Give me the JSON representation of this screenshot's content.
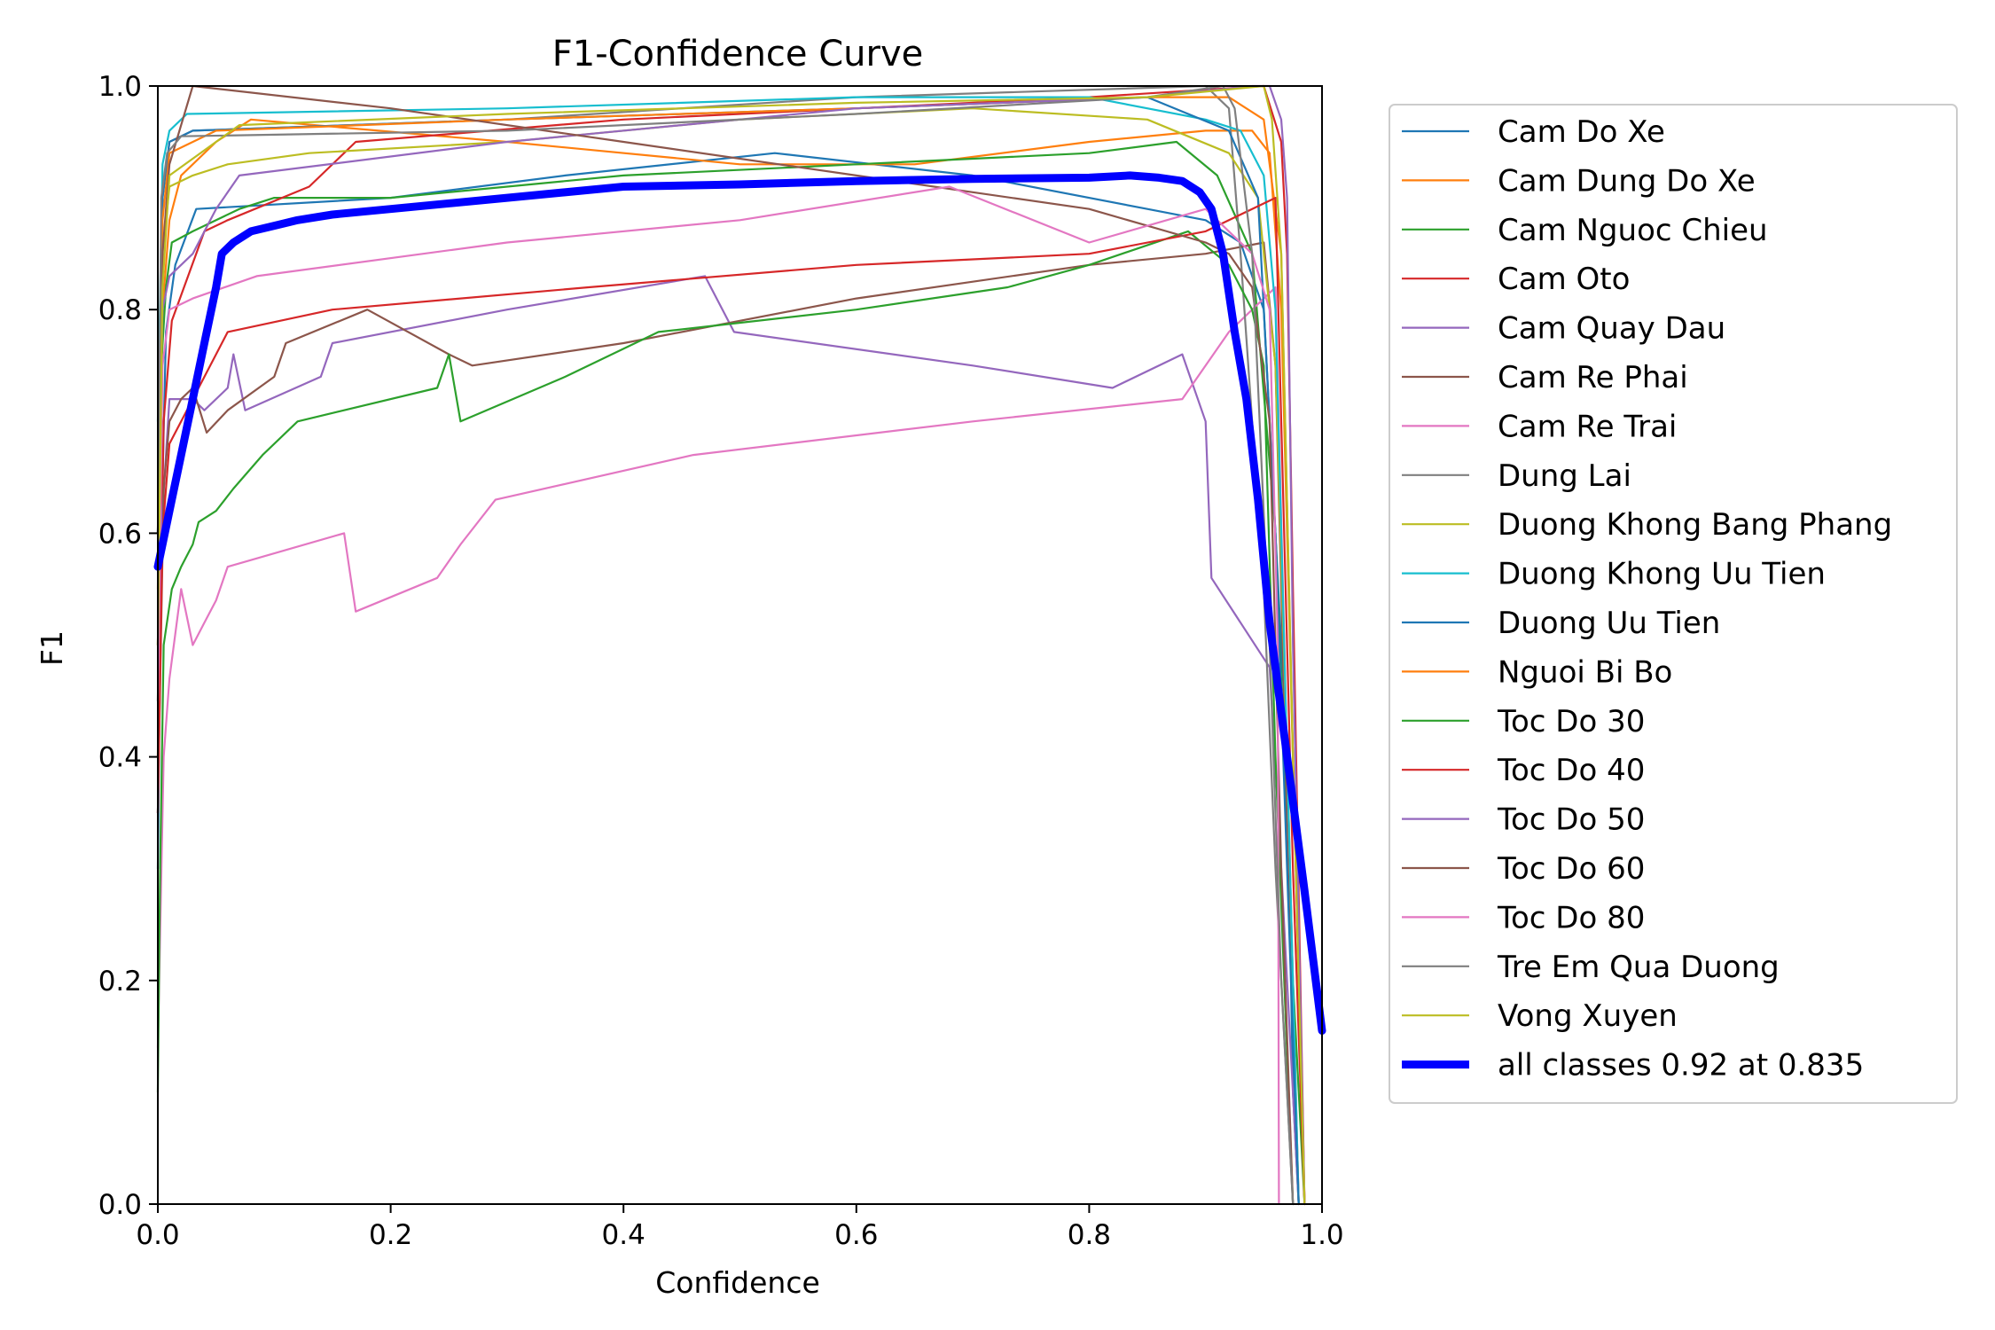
{
  "chart_data": {
    "type": "line",
    "title": "F1-Confidence Curve",
    "xlabel": "Confidence",
    "ylabel": "F1",
    "xlim": [
      0.0,
      1.0
    ],
    "ylim": [
      0.0,
      1.0
    ],
    "xticks": [
      "0.0",
      "0.2",
      "0.4",
      "0.6",
      "0.8",
      "1.0"
    ],
    "yticks": [
      "0.0",
      "0.2",
      "0.4",
      "0.6",
      "0.8",
      "1.0"
    ],
    "grid": false,
    "legend_position": "outside-right",
    "series": [
      {
        "name": "Cam Do Xe",
        "color": "#1f77b4",
        "width": "thin",
        "x": [
          0.0,
          0.003,
          0.007,
          0.015,
          0.033,
          0.2,
          0.35,
          0.53,
          0.7,
          0.85,
          0.9,
          0.93,
          0.95,
          0.97,
          0.975,
          0.98
        ],
        "y": [
          0.3,
          0.6,
          0.78,
          0.84,
          0.89,
          0.9,
          0.92,
          0.94,
          0.92,
          0.89,
          0.88,
          0.86,
          0.8,
          0.4,
          0.1,
          0.0
        ]
      },
      {
        "name": "Cam Dung Do Xe",
        "color": "#ff7f0e",
        "width": "thin",
        "x": [
          0.0,
          0.004,
          0.01,
          0.02,
          0.05,
          0.08,
          0.3,
          0.5,
          0.65,
          0.8,
          0.9,
          0.94,
          0.955,
          0.965,
          0.975,
          0.985
        ],
        "y": [
          0.4,
          0.8,
          0.88,
          0.92,
          0.95,
          0.97,
          0.95,
          0.93,
          0.93,
          0.95,
          0.96,
          0.96,
          0.94,
          0.8,
          0.4,
          0.0
        ]
      },
      {
        "name": "Cam Nguoc Chieu",
        "color": "#2ca02c",
        "width": "thin",
        "x": [
          0.0,
          0.003,
          0.007,
          0.012,
          0.03,
          0.07,
          0.1,
          0.2,
          0.4,
          0.6,
          0.8,
          0.875,
          0.91,
          0.94,
          0.96,
          0.975,
          0.985
        ],
        "y": [
          0.45,
          0.75,
          0.82,
          0.86,
          0.87,
          0.89,
          0.9,
          0.9,
          0.92,
          0.93,
          0.94,
          0.95,
          0.92,
          0.85,
          0.6,
          0.2,
          0.0
        ]
      },
      {
        "name": "Cam Oto",
        "color": "#d62728",
        "width": "thin",
        "x": [
          0.0,
          0.005,
          0.012,
          0.04,
          0.06,
          0.13,
          0.17,
          0.4,
          0.6,
          0.8,
          0.95,
          0.965,
          0.97,
          0.975,
          0.985
        ],
        "y": [
          0.4,
          0.7,
          0.79,
          0.87,
          0.88,
          0.91,
          0.95,
          0.97,
          0.98,
          0.99,
          1.0,
          0.95,
          0.85,
          0.55,
          0.0
        ]
      },
      {
        "name": "Cam Quay Dau",
        "color": "#9467bd",
        "width": "thin",
        "x": [
          0.0,
          0.004,
          0.01,
          0.03,
          0.04,
          0.06,
          0.065,
          0.075,
          0.14,
          0.15,
          0.3,
          0.47,
          0.495,
          0.7,
          0.82,
          0.88,
          0.9,
          0.905,
          0.955,
          0.965,
          0.98
        ],
        "y": [
          0.35,
          0.62,
          0.72,
          0.72,
          0.71,
          0.73,
          0.76,
          0.71,
          0.74,
          0.77,
          0.8,
          0.83,
          0.78,
          0.75,
          0.73,
          0.76,
          0.7,
          0.56,
          0.48,
          0.3,
          0.0
        ]
      },
      {
        "name": "Cam Re Phai",
        "color": "#8c564b",
        "width": "thin",
        "x": [
          0.0,
          0.005,
          0.01,
          0.02,
          0.03,
          0.042,
          0.06,
          0.1,
          0.11,
          0.18,
          0.25,
          0.27,
          0.4,
          0.6,
          0.8,
          0.9,
          0.95,
          0.96,
          0.97,
          0.98
        ],
        "y": [
          0.35,
          0.64,
          0.7,
          0.72,
          0.73,
          0.69,
          0.71,
          0.74,
          0.77,
          0.8,
          0.76,
          0.75,
          0.77,
          0.81,
          0.84,
          0.85,
          0.86,
          0.75,
          0.35,
          0.0
        ]
      },
      {
        "name": "Cam Re Trai",
        "color": "#e377c2",
        "width": "thin",
        "x": [
          0.0,
          0.005,
          0.01,
          0.02,
          0.03,
          0.04,
          0.05,
          0.06,
          0.16,
          0.17,
          0.24,
          0.26,
          0.29,
          0.46,
          0.7,
          0.88,
          0.9,
          0.92,
          0.94,
          0.96,
          0.97,
          0.98
        ],
        "y": [
          0.14,
          0.4,
          0.47,
          0.55,
          0.5,
          0.52,
          0.54,
          0.57,
          0.6,
          0.53,
          0.56,
          0.59,
          0.63,
          0.67,
          0.7,
          0.72,
          0.75,
          0.78,
          0.8,
          0.82,
          0.4,
          0.0
        ]
      },
      {
        "name": "Dung Lai",
        "color": "#7f7f7f",
        "width": "thin",
        "x": [
          0.0,
          0.004,
          0.01,
          0.03,
          0.3,
          0.6,
          0.9,
          0.92,
          0.93,
          0.95,
          0.96,
          0.975
        ],
        "y": [
          0.6,
          0.9,
          0.95,
          0.96,
          0.97,
          0.99,
          1.0,
          0.98,
          0.85,
          0.55,
          0.3,
          0.0
        ]
      },
      {
        "name": "Duong Khong Bang Phang",
        "color": "#bcbd22",
        "width": "thin",
        "x": [
          0.0,
          0.004,
          0.01,
          0.03,
          0.06,
          0.13,
          0.3,
          0.5,
          0.7,
          0.85,
          0.92,
          0.945,
          0.96,
          0.97,
          0.98
        ],
        "y": [
          0.5,
          0.85,
          0.91,
          0.92,
          0.93,
          0.94,
          0.95,
          0.97,
          0.98,
          0.97,
          0.94,
          0.9,
          0.75,
          0.4,
          0.0
        ]
      },
      {
        "name": "Duong Khong Uu Tien",
        "color": "#17becf",
        "width": "thin",
        "x": [
          0.0,
          0.004,
          0.01,
          0.025,
          0.3,
          0.6,
          0.8,
          0.9,
          0.93,
          0.95,
          0.96,
          0.97,
          0.98
        ],
        "y": [
          0.7,
          0.93,
          0.96,
          0.975,
          0.98,
          0.99,
          0.99,
          0.97,
          0.96,
          0.92,
          0.8,
          0.4,
          0.0
        ]
      },
      {
        "name": "Duong Uu Tien",
        "color": "#1f77b4",
        "width": "thin",
        "x": [
          0.0,
          0.004,
          0.01,
          0.03,
          0.3,
          0.6,
          0.85,
          0.92,
          0.945,
          0.96,
          0.97,
          0.98
        ],
        "y": [
          0.6,
          0.9,
          0.95,
          0.96,
          0.97,
          0.98,
          0.99,
          0.96,
          0.9,
          0.6,
          0.3,
          0.0
        ]
      },
      {
        "name": "Nguoi Bi Bo",
        "color": "#ff7f0e",
        "width": "thin",
        "x": [
          0.0,
          0.004,
          0.01,
          0.05,
          0.3,
          0.6,
          0.85,
          0.92,
          0.95,
          0.965,
          0.975,
          0.985
        ],
        "y": [
          0.55,
          0.88,
          0.94,
          0.96,
          0.97,
          0.98,
          0.99,
          0.99,
          0.97,
          0.85,
          0.4,
          0.0
        ]
      },
      {
        "name": "Toc Do 30",
        "color": "#2ca02c",
        "width": "thin",
        "x": [
          0.0,
          0.002,
          0.005,
          0.012,
          0.02,
          0.03,
          0.035,
          0.05,
          0.065,
          0.09,
          0.12,
          0.24,
          0.25,
          0.26,
          0.35,
          0.43,
          0.6,
          0.73,
          0.8,
          0.885,
          0.92,
          0.94,
          0.95,
          0.96,
          0.975
        ],
        "y": [
          0.1,
          0.3,
          0.5,
          0.55,
          0.57,
          0.59,
          0.61,
          0.62,
          0.64,
          0.67,
          0.7,
          0.73,
          0.76,
          0.7,
          0.74,
          0.78,
          0.8,
          0.82,
          0.84,
          0.87,
          0.84,
          0.8,
          0.75,
          0.4,
          0.0
        ]
      },
      {
        "name": "Toc Do 40",
        "color": "#d62728",
        "width": "thin",
        "x": [
          0.0,
          0.004,
          0.01,
          0.03,
          0.05,
          0.06,
          0.15,
          0.37,
          0.6,
          0.8,
          0.9,
          0.96,
          0.965,
          0.975,
          0.985
        ],
        "y": [
          0.35,
          0.6,
          0.68,
          0.72,
          0.76,
          0.78,
          0.8,
          0.82,
          0.84,
          0.85,
          0.87,
          0.9,
          0.7,
          0.3,
          0.0
        ]
      },
      {
        "name": "Toc Do 50",
        "color": "#9467bd",
        "width": "thin",
        "x": [
          0.0,
          0.004,
          0.01,
          0.03,
          0.05,
          0.07,
          0.3,
          0.6,
          0.85,
          0.94,
          0.955,
          0.965,
          0.97,
          0.975,
          0.985
        ],
        "y": [
          0.6,
          0.8,
          0.83,
          0.85,
          0.89,
          0.92,
          0.95,
          0.98,
          0.99,
          1.0,
          1.0,
          0.97,
          0.9,
          0.5,
          0.0
        ]
      },
      {
        "name": "Toc Do 60",
        "color": "#8c564b",
        "width": "thin",
        "x": [
          0.0,
          0.004,
          0.01,
          0.03,
          0.2,
          0.4,
          0.6,
          0.8,
          0.9,
          0.92,
          0.94,
          0.955,
          0.965,
          0.975
        ],
        "y": [
          0.5,
          0.85,
          0.93,
          1.0,
          0.98,
          0.95,
          0.92,
          0.89,
          0.86,
          0.85,
          0.82,
          0.7,
          0.3,
          0.0
        ]
      },
      {
        "name": "Toc Do 80",
        "color": "#e377c2",
        "width": "thin",
        "x": [
          0.0,
          0.004,
          0.01,
          0.03,
          0.085,
          0.3,
          0.5,
          0.68,
          0.8,
          0.9,
          0.94,
          0.955,
          0.962,
          0.963
        ],
        "y": [
          0.45,
          0.75,
          0.8,
          0.81,
          0.83,
          0.86,
          0.88,
          0.91,
          0.86,
          0.89,
          0.85,
          0.8,
          0.5,
          0.0
        ]
      },
      {
        "name": "Tre Em Qua Duong",
        "color": "#7f7f7f",
        "width": "thin",
        "x": [
          0.0,
          0.003,
          0.008,
          0.02,
          0.3,
          0.6,
          0.85,
          0.915,
          0.925,
          0.94,
          0.955,
          0.965,
          0.975
        ],
        "y": [
          0.6,
          0.9,
          0.94,
          0.955,
          0.96,
          0.975,
          0.99,
          1.0,
          0.98,
          0.85,
          0.5,
          0.2,
          0.0
        ]
      },
      {
        "name": "Vong Xuyen",
        "color": "#bcbd22",
        "width": "thin",
        "x": [
          0.0,
          0.004,
          0.01,
          0.07,
          0.3,
          0.6,
          0.85,
          0.95,
          0.957,
          0.965,
          0.975,
          0.985
        ],
        "y": [
          0.5,
          0.82,
          0.92,
          0.965,
          0.975,
          0.985,
          0.99,
          1.0,
          0.97,
          0.85,
          0.4,
          0.0
        ]
      },
      {
        "name": "all classes 0.92 at 0.835",
        "color": "#0000ff",
        "width": "thick",
        "x": [
          0.0,
          0.01,
          0.02,
          0.03,
          0.04,
          0.05,
          0.055,
          0.065,
          0.08,
          0.1,
          0.12,
          0.15,
          0.2,
          0.3,
          0.4,
          0.5,
          0.6,
          0.7,
          0.8,
          0.835,
          0.86,
          0.88,
          0.895,
          0.905,
          0.915,
          0.925,
          0.935,
          0.945,
          0.955,
          0.965,
          0.975,
          0.985,
          1.0
        ],
        "y": [
          0.57,
          0.62,
          0.67,
          0.72,
          0.77,
          0.82,
          0.85,
          0.86,
          0.87,
          0.875,
          0.88,
          0.885,
          0.89,
          0.9,
          0.91,
          0.912,
          0.915,
          0.917,
          0.918,
          0.92,
          0.918,
          0.915,
          0.905,
          0.89,
          0.85,
          0.78,
          0.72,
          0.63,
          0.52,
          0.44,
          0.36,
          0.28,
          0.155
        ]
      }
    ]
  }
}
